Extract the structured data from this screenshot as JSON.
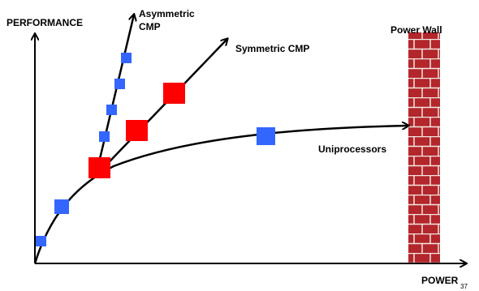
{
  "labels": {
    "y_axis": "PERFORMANCE",
    "x_axis": "POWER",
    "asymmetric": [
      "Asymmetric",
      "CMP"
    ],
    "symmetric": "Symmetric CMP",
    "uniprocessors": "Uniprocessors",
    "power_wall": "Power Wall",
    "slide_number": "37"
  }
}
